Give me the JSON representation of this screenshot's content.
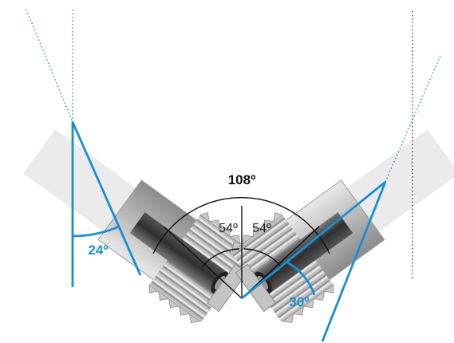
{
  "angles": {
    "total": {
      "label": "108º",
      "value": 108,
      "unit": "degrees"
    },
    "left_half": {
      "label": "54º",
      "value": 54,
      "unit": "degrees"
    },
    "right_half": {
      "label": "54º",
      "value": 54,
      "unit": "degrees"
    },
    "left_cone": {
      "label": "24º",
      "value": 24,
      "unit": "degrees"
    },
    "right_cone": {
      "label": "30º",
      "value": 30,
      "unit": "degrees"
    }
  },
  "colors": {
    "accent_blue": "#1a8fd0",
    "dark_line": "#111111",
    "metal_light": "#d8d8d8",
    "metal_mid": "#a9a9a9",
    "metal_dark": "#5a5a5a",
    "core_dark": "#3d3d3d"
  }
}
